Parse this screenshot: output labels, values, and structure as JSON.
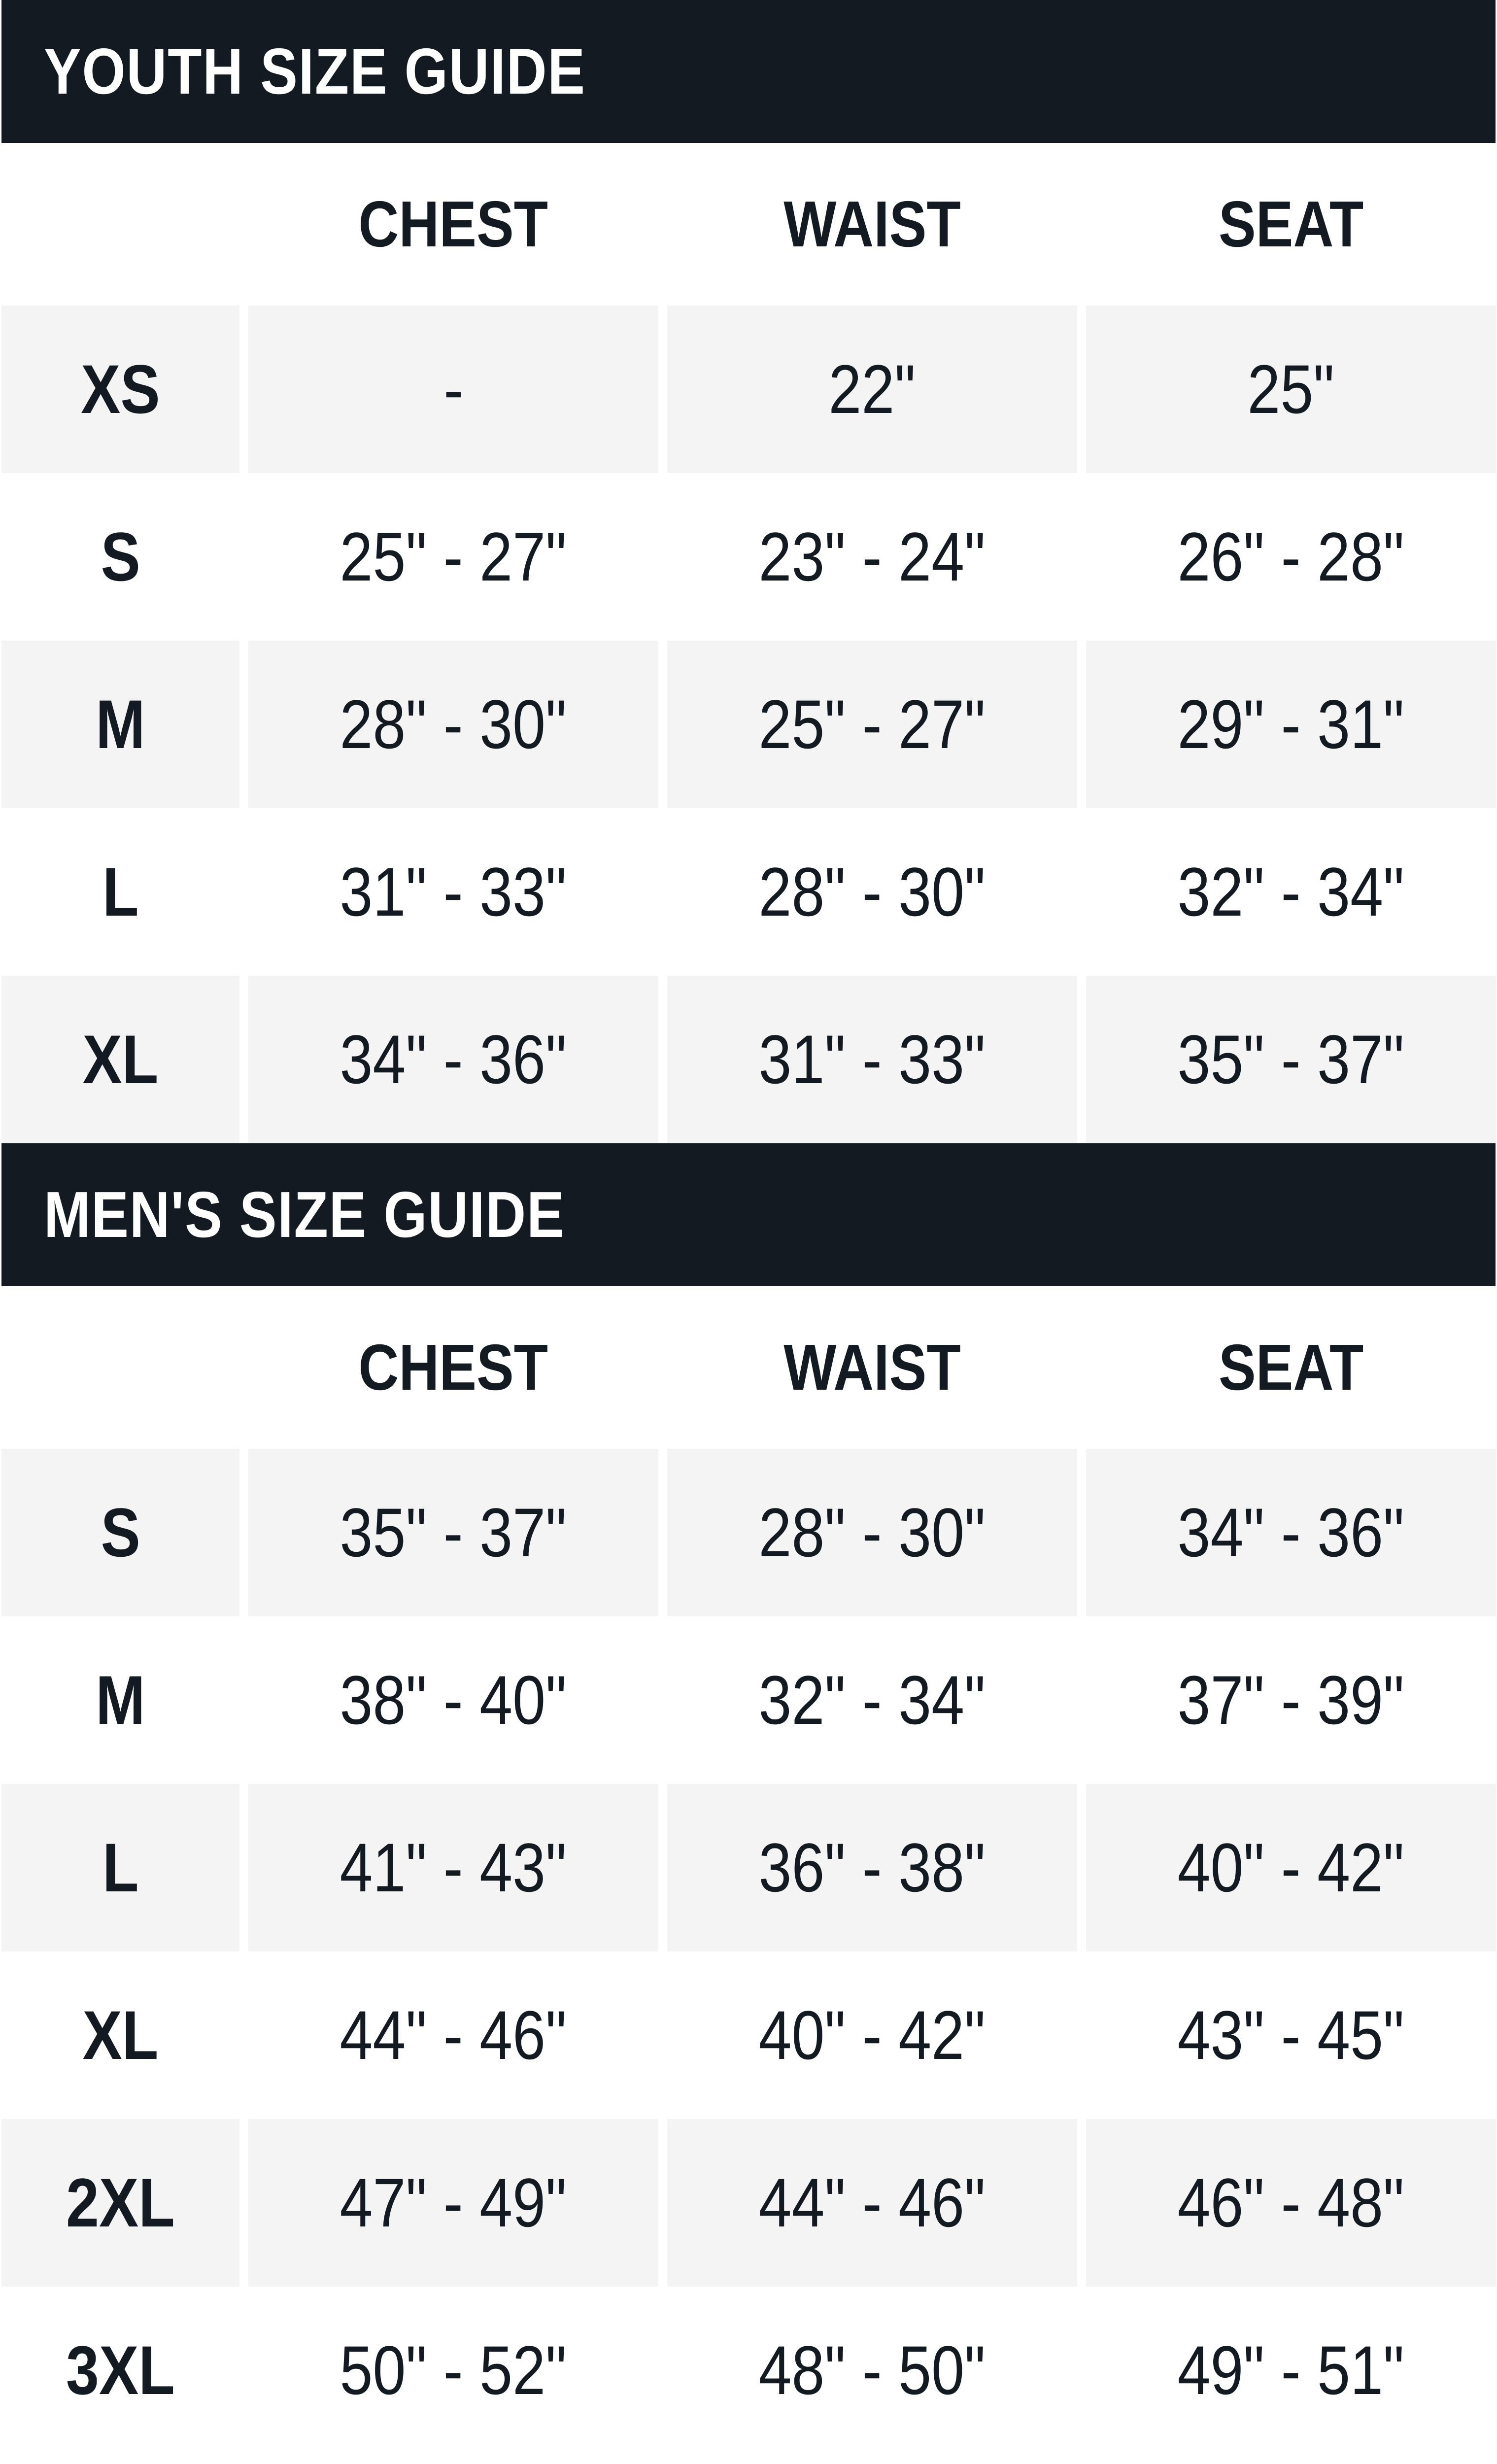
{
  "youth": {
    "title": "YOUTH SIZE GUIDE",
    "columns": [
      "CHEST",
      "WAIST",
      "SEAT"
    ],
    "rows": [
      {
        "size": "XS",
        "chest": "-",
        "waist": "22\"",
        "seat": "25\""
      },
      {
        "size": "S",
        "chest": "25\" - 27\"",
        "waist": "23\" - 24\"",
        "seat": "26\" - 28\""
      },
      {
        "size": "M",
        "chest": "28\" - 30\"",
        "waist": "25\" - 27\"",
        "seat": "29\" - 31\""
      },
      {
        "size": "L",
        "chest": "31\" - 33\"",
        "waist": "28\" - 30\"",
        "seat": "32\" - 34\""
      },
      {
        "size": "XL",
        "chest": "34\" - 36\"",
        "waist": "31\" - 33\"",
        "seat": "35\" - 37\""
      }
    ]
  },
  "mens": {
    "title": "MEN'S SIZE GUIDE",
    "columns": [
      "CHEST",
      "WAIST",
      "SEAT"
    ],
    "rows": [
      {
        "size": "S",
        "chest": "35\" - 37\"",
        "waist": "28\" - 30\"",
        "seat": "34\" - 36\""
      },
      {
        "size": "M",
        "chest": "38\" - 40\"",
        "waist": "32\" - 34\"",
        "seat": "37\" - 39\""
      },
      {
        "size": "L",
        "chest": "41\" - 43\"",
        "waist": "36\" - 38\"",
        "seat": "40\" - 42\""
      },
      {
        "size": "XL",
        "chest": "44\" - 46\"",
        "waist": "40\" - 42\"",
        "seat": "43\" - 45\""
      },
      {
        "size": "2XL",
        "chest": "47\" - 49\"",
        "waist": "44\" - 46\"",
        "seat": "46\" - 48\""
      },
      {
        "size": "3XL",
        "chest": "50\" - 52\"",
        "waist": "48\" - 50\"",
        "seat": "49\" - 51\""
      }
    ]
  },
  "colors": {
    "header_bg": "#131a22",
    "stripe_bg": "#f4f4f4",
    "text": "#131a22"
  }
}
